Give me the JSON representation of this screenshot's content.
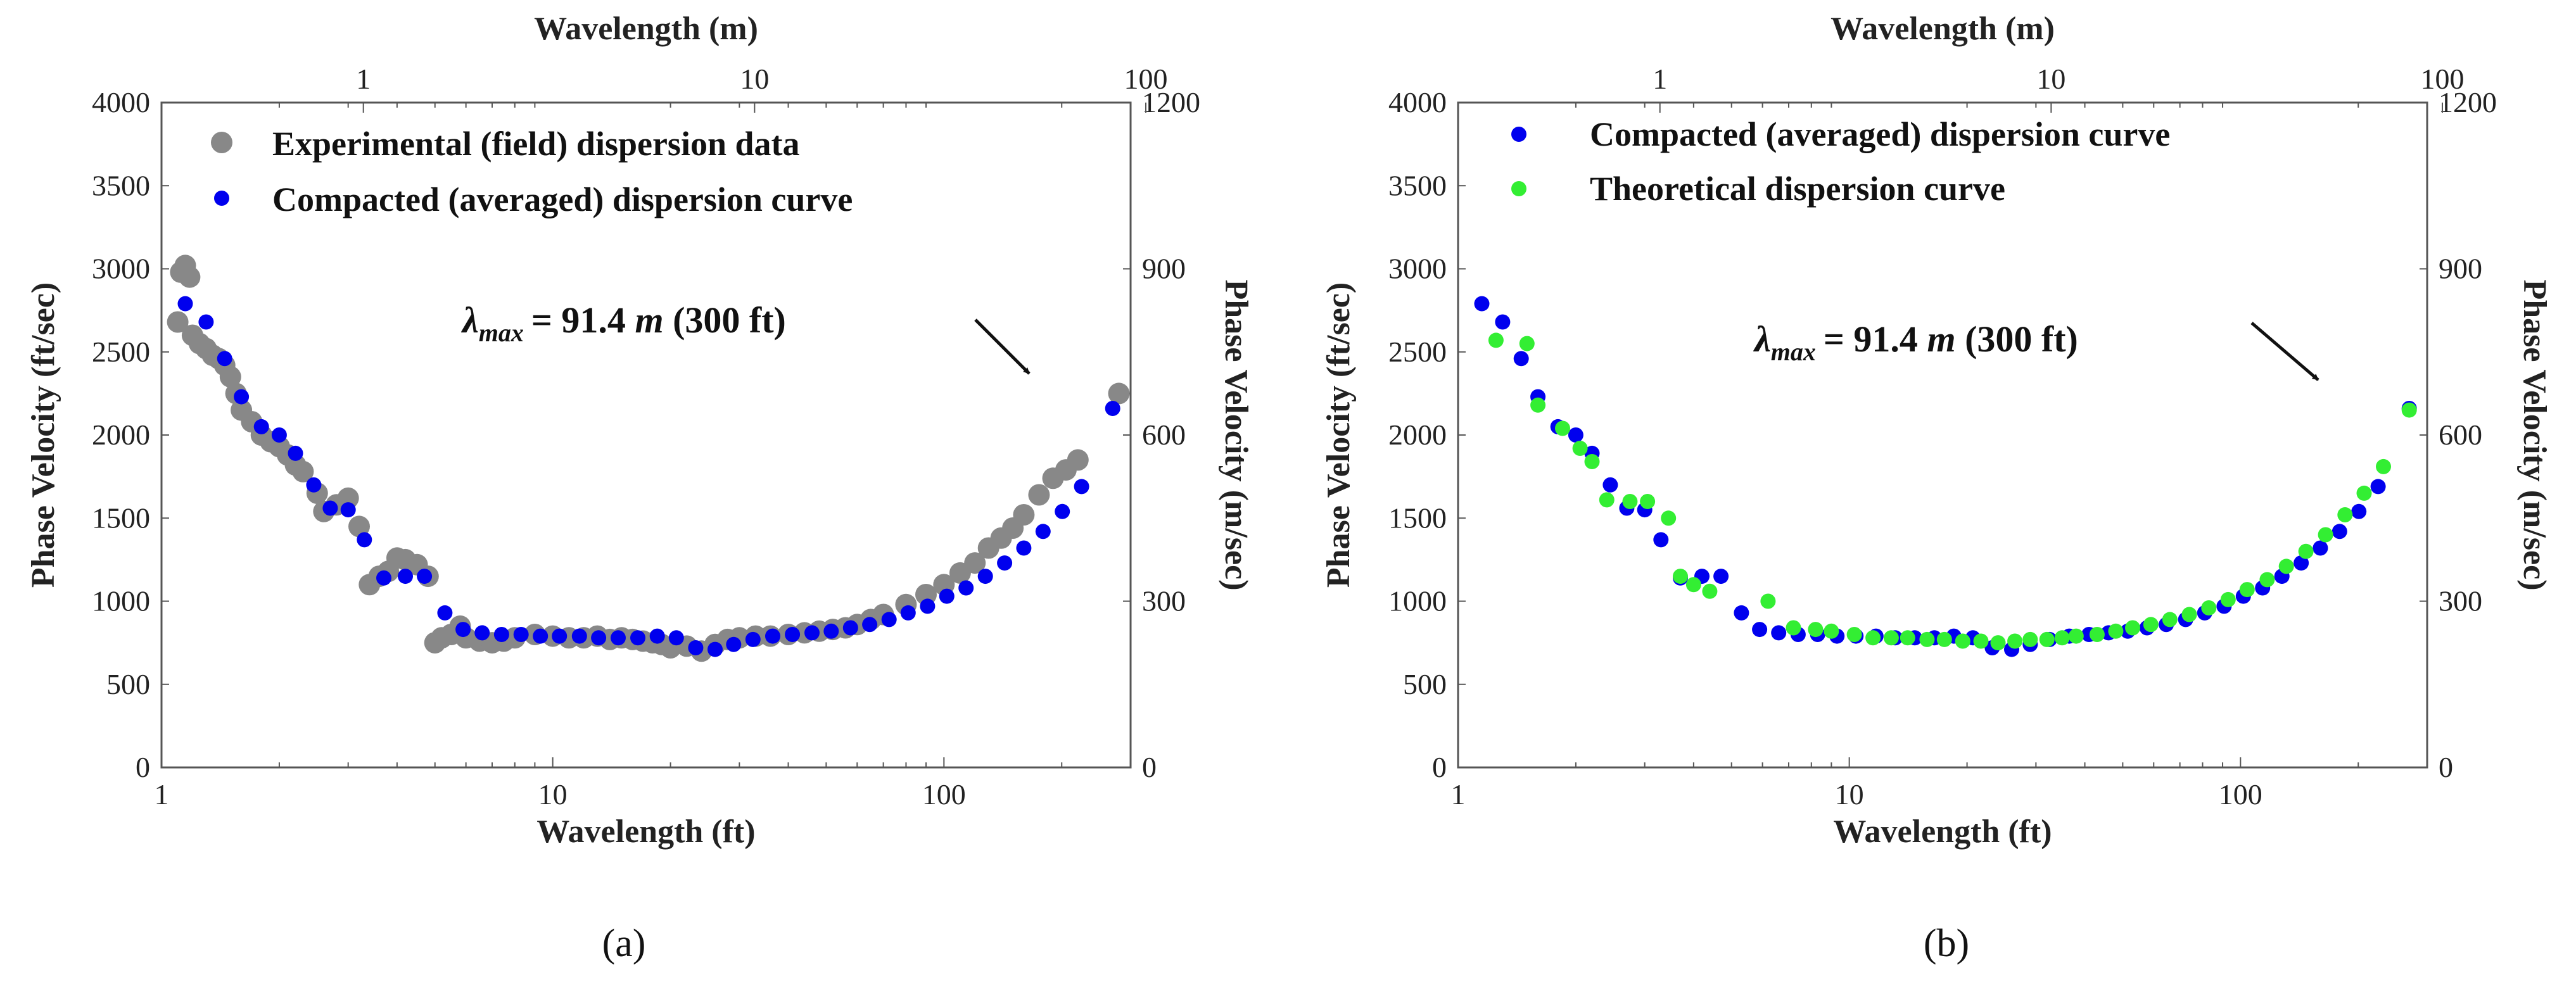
{
  "chart_data": [
    {
      "panel": "a",
      "type": "scatter",
      "caption": "(a)",
      "xlabel": "Wavelength (ft)",
      "x2label": "Wavelength (m)",
      "ylabel": "Phase Velocity (ft/sec)",
      "y2label": "Phase Velocity (m/sec)",
      "xscale": "log",
      "xlim": [
        1,
        300
      ],
      "ylim": [
        0,
        4000
      ],
      "y2lim": [
        0,
        1200
      ],
      "xticks": [
        {
          "v": 1,
          "label": "1"
        },
        {
          "v": 10,
          "label": "10"
        },
        {
          "v": 100,
          "label": "100"
        }
      ],
      "x2ticks": [
        {
          "v": 1,
          "label": "1"
        },
        {
          "v": 10,
          "label": "10"
        },
        {
          "v": 100,
          "label": "100"
        }
      ],
      "yticks": [
        "0",
        "500",
        "1000",
        "1500",
        "2000",
        "2500",
        "3000",
        "3500",
        "4000"
      ],
      "y2ticks": [
        "0",
        "300",
        "600",
        "900",
        "1200"
      ],
      "annotation": {
        "label": "λmax = 91.4 m (300 ft)",
        "lambda": "λ",
        "sub": "max",
        "eq": "= 91.4 ",
        "m": "m",
        "rest": " (300 ft)",
        "x": 290,
        "y": 2220
      },
      "series": [
        {
          "name": "Experimental (field) dispersion data",
          "color": "#888888",
          "x": [
            1.1,
            1.12,
            1.15,
            1.18,
            1.2,
            1.25,
            1.3,
            1.35,
            1.4,
            1.45,
            1.5,
            1.55,
            1.6,
            1.7,
            1.8,
            1.9,
            2.0,
            2.1,
            2.2,
            2.3,
            2.5,
            2.6,
            2.8,
            3.0,
            3.2,
            3.4,
            3.6,
            3.8,
            4.0,
            4.2,
            4.5,
            4.8,
            5.0,
            5.2,
            5.5,
            5.8,
            6.0,
            6.5,
            7.0,
            7.5,
            8.0,
            9.0,
            10,
            11,
            12,
            13,
            14,
            15,
            16,
            17,
            18,
            19,
            20,
            22,
            24,
            26,
            28,
            30,
            33,
            36,
            40,
            44,
            48,
            52,
            56,
            60,
            65,
            70,
            80,
            90,
            100,
            110,
            120,
            130,
            140,
            150,
            160,
            175,
            190,
            205,
            220,
            280
          ],
          "y": [
            2680,
            2980,
            3020,
            2950,
            2600,
            2550,
            2520,
            2480,
            2460,
            2420,
            2350,
            2250,
            2150,
            2080,
            2000,
            1960,
            1930,
            1880,
            1820,
            1780,
            1650,
            1540,
            1580,
            1620,
            1450,
            1100,
            1150,
            1180,
            1260,
            1250,
            1220,
            1150,
            750,
            780,
            800,
            850,
            780,
            760,
            750,
            760,
            780,
            800,
            790,
            780,
            780,
            790,
            770,
            780,
            770,
            760,
            750,
            740,
            720,
            730,
            700,
            740,
            770,
            780,
            790,
            790,
            800,
            810,
            820,
            830,
            840,
            860,
            890,
            920,
            980,
            1040,
            1100,
            1170,
            1230,
            1320,
            1380,
            1440,
            1520,
            1640,
            1740,
            1790,
            1850,
            2250
          ]
        },
        {
          "name": "Compacted (averaged) dispersion curve",
          "color": "#0000ee",
          "x": [
            1.15,
            1.3,
            1.45,
            1.6,
            1.8,
            2.0,
            2.2,
            2.45,
            2.7,
            3.0,
            3.3,
            3.7,
            4.2,
            4.7,
            5.3,
            5.9,
            6.6,
            7.4,
            8.3,
            9.3,
            10.4,
            11.7,
            13.1,
            14.7,
            16.5,
            18.5,
            20.7,
            23.2,
            26,
            29,
            32.5,
            36.5,
            41,
            46,
            51.5,
            57.7,
            64.6,
            72.4,
            81,
            90.8,
            101.7,
            113.9,
            127.6,
            142.9,
            160,
            179.2,
            200.7,
            224.8,
            270
          ],
          "y": [
            2790,
            2680,
            2460,
            2230,
            2050,
            2000,
            1890,
            1700,
            1560,
            1550,
            1370,
            1140,
            1150,
            1150,
            930,
            830,
            810,
            800,
            800,
            790,
            790,
            790,
            780,
            780,
            780,
            790,
            780,
            720,
            710,
            740,
            770,
            790,
            800,
            810,
            820,
            840,
            860,
            890,
            930,
            970,
            1030,
            1080,
            1150,
            1230,
            1320,
            1420,
            1540,
            1690,
            2160
          ]
        }
      ]
    },
    {
      "panel": "b",
      "type": "scatter",
      "caption": "(b)",
      "xlabel": "Wavelength (ft)",
      "x2label": "Wavelength (m)",
      "ylabel": "Phase Velocity (ft/sec)",
      "y2label": "Phase Velocity (m/sec)",
      "xscale": "log",
      "xlim": [
        1,
        300
      ],
      "ylim": [
        0,
        4000
      ],
      "y2lim": [
        0,
        1200
      ],
      "xticks": [
        {
          "v": 1,
          "label": "1"
        },
        {
          "v": 10,
          "label": "10"
        },
        {
          "v": 100,
          "label": "100"
        }
      ],
      "x2ticks": [
        {
          "v": 1,
          "label": "1"
        },
        {
          "v": 10,
          "label": "10"
        },
        {
          "v": 100,
          "label": "100"
        }
      ],
      "yticks": [
        "0",
        "500",
        "1000",
        "1500",
        "2000",
        "2500",
        "3000",
        "3500",
        "4000"
      ],
      "y2ticks": [
        "0",
        "300",
        "600",
        "900",
        "1200"
      ],
      "annotation": {
        "label": "λmax = 91.4 m (300 ft)",
        "lambda": "λ",
        "sub": "max",
        "eq": "= 91.4 ",
        "m": "m",
        "rest": " (300 ft)",
        "x": 270,
        "y": 2150
      },
      "series": [
        {
          "name": "Compacted (averaged) dispersion curve",
          "color": "#0000ee",
          "x": [
            1.15,
            1.3,
            1.45,
            1.6,
            1.8,
            2.0,
            2.2,
            2.45,
            2.7,
            3.0,
            3.3,
            3.7,
            4.2,
            4.7,
            5.3,
            5.9,
            6.6,
            7.4,
            8.3,
            9.3,
            10.4,
            11.7,
            13.1,
            14.7,
            16.5,
            18.5,
            20.7,
            23.2,
            26,
            29,
            32.5,
            36.5,
            41,
            46,
            51.5,
            57.7,
            64.6,
            72.4,
            81,
            90.8,
            101.7,
            113.9,
            127.6,
            142.9,
            160,
            179.2,
            200.7,
            224.8,
            270
          ],
          "y": [
            2790,
            2680,
            2460,
            2230,
            2050,
            2000,
            1890,
            1700,
            1560,
            1550,
            1370,
            1140,
            1150,
            1150,
            930,
            830,
            810,
            800,
            800,
            790,
            790,
            790,
            780,
            780,
            780,
            790,
            780,
            720,
            710,
            740,
            770,
            790,
            800,
            810,
            820,
            840,
            860,
            890,
            930,
            970,
            1030,
            1080,
            1150,
            1230,
            1320,
            1420,
            1540,
            1690,
            2160
          ]
        },
        {
          "name": "Theoretical dispersion curve",
          "color": "#33ee33",
          "x": [
            1.25,
            1.5,
            1.6,
            1.85,
            2.05,
            2.2,
            2.4,
            2.75,
            3.05,
            3.45,
            3.7,
            4.0,
            4.4,
            6.2,
            7.2,
            8.2,
            9.0,
            10.3,
            11.5,
            12.8,
            14.1,
            15.8,
            17.5,
            19.5,
            21.7,
            24,
            26.5,
            29,
            32,
            35,
            38,
            43,
            48,
            53,
            59,
            66,
            74,
            83,
            93,
            104,
            117,
            131,
            147,
            165,
            185,
            207,
            232,
            270
          ],
          "y": [
            2570,
            2550,
            2180,
            2040,
            1920,
            1840,
            1610,
            1600,
            1600,
            1500,
            1150,
            1100,
            1060,
            1000,
            840,
            830,
            820,
            800,
            780,
            780,
            780,
            770,
            770,
            760,
            760,
            750,
            760,
            770,
            770,
            780,
            790,
            800,
            820,
            840,
            860,
            890,
            920,
            960,
            1010,
            1070,
            1130,
            1210,
            1300,
            1400,
            1520,
            1650,
            1810,
            2150
          ]
        }
      ]
    }
  ]
}
